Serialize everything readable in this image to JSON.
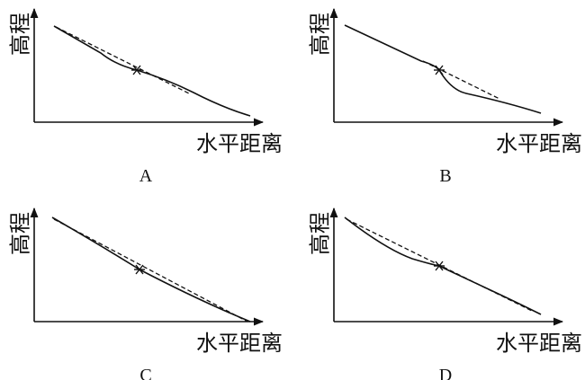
{
  "panels": [
    {
      "label": "A",
      "y_axis_label": "高程",
      "x_axis_label": "水平距离"
    },
    {
      "label": "B",
      "y_axis_label": "高程",
      "x_axis_label": "水平距离"
    },
    {
      "label": "C",
      "y_axis_label": "高程",
      "x_axis_label": "水平距离"
    },
    {
      "label": "D",
      "y_axis_label": "高程",
      "x_axis_label": "水平距离"
    }
  ]
}
